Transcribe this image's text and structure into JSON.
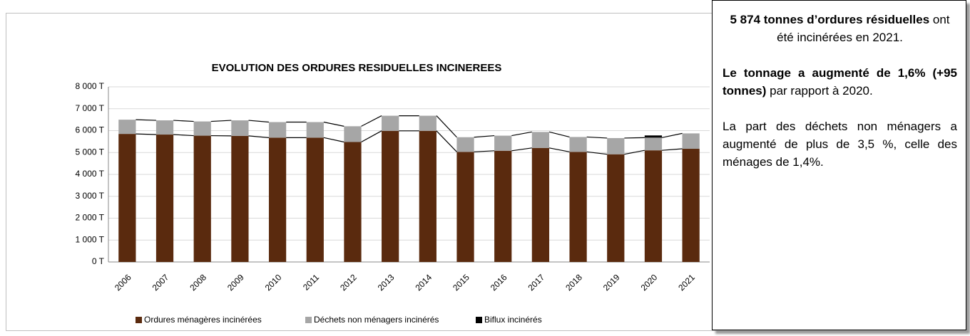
{
  "chart_data": {
    "type": "stacked_bar",
    "title": "EVOLUTION DES ORDURES RESIDUELLES INCINEREES",
    "categories": [
      "2006",
      "2007",
      "2008",
      "2009",
      "2010",
      "2011",
      "2012",
      "2013",
      "2014",
      "2015",
      "2016",
      "2017",
      "2018",
      "2019",
      "2020",
      "2021"
    ],
    "series": [
      {
        "name": "Ordures ménagères incinérées",
        "color": "#5a2a0e",
        "values": [
          5850,
          5820,
          5770,
          5760,
          5680,
          5680,
          5480,
          5990,
          5990,
          5030,
          5080,
          5210,
          5030,
          4920,
          5100,
          5170
        ]
      },
      {
        "name": "Déchets non ménagers incinérés",
        "color": "#a6a6a6",
        "values": [
          650,
          650,
          650,
          710,
          710,
          710,
          720,
          690,
          690,
          670,
          690,
          730,
          680,
          740,
          580,
          704
        ]
      },
      {
        "name": "Biflux incinérés",
        "color": "#000000",
        "values": [
          0,
          0,
          0,
          0,
          0,
          0,
          0,
          0,
          0,
          0,
          0,
          0,
          0,
          0,
          100,
          0
        ]
      }
    ],
    "ylim": [
      0,
      8000
    ],
    "yticks": [
      {
        "value": 0,
        "label": "0 T"
      },
      {
        "value": 1000,
        "label": "1 000 T"
      },
      {
        "value": 2000,
        "label": "2 000 T"
      },
      {
        "value": 3000,
        "label": "3 000 T"
      },
      {
        "value": 4000,
        "label": "4 000 T"
      },
      {
        "value": 5000,
        "label": "5 000 T"
      },
      {
        "value": 6000,
        "label": "6 000 T"
      },
      {
        "value": 7000,
        "label": "7 000 T"
      },
      {
        "value": 8000,
        "label": "8 000 T"
      }
    ],
    "grid": true,
    "legend": "bottom",
    "series_lines": true
  },
  "text_box": {
    "paragraphs": [
      {
        "align": "center",
        "runs": [
          {
            "text": "5 874 tonnes d’ordures résiduelles",
            "bold": true
          },
          {
            "text": " ont été incinérées en 2021.",
            "bold": false
          }
        ]
      },
      {
        "align": "justify",
        "runs": [
          {
            "text": "Le tonnage a augmenté de 1,6% (+95 tonnes)",
            "bold": true
          },
          {
            "text": " par rapport à 2020.",
            "bold": false
          }
        ]
      },
      {
        "align": "justify",
        "runs": [
          {
            "text": "La part des déchets non ménagers a augmenté de plus de 3,5 %, celle des ménages de 1,4%.",
            "bold": false
          }
        ]
      }
    ]
  }
}
